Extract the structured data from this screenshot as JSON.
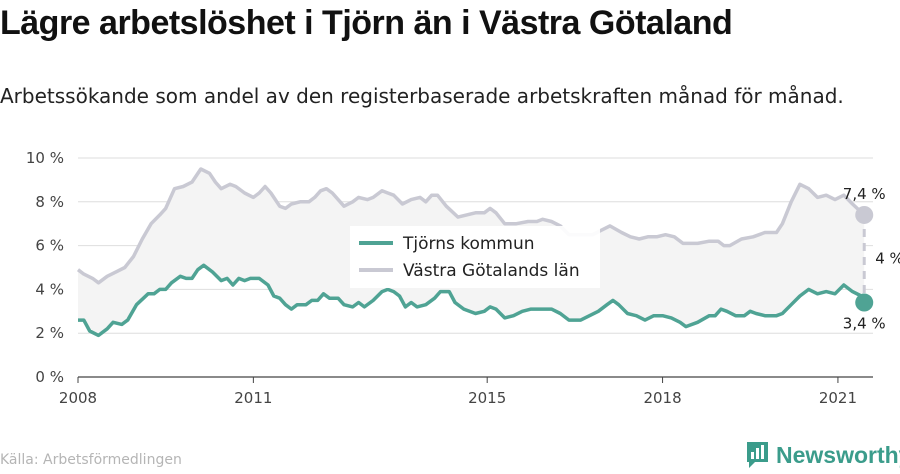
{
  "header": {
    "title": "Lägre arbetslöshet i Tjörn än i Västra Götaland",
    "subtitle": "Arbetssökande som andel av den registerbaserade arbetskraften månad för månad."
  },
  "footer": {
    "source": "Källa: Arbetsförmedlingen",
    "brand": "Newsworthy"
  },
  "colors": {
    "tjorn": "#4fa394",
    "vg": "#c9c9d3",
    "band": "#f4f4f4",
    "grid": "#dedede"
  },
  "chart_data": {
    "type": "line",
    "x_unit": "year",
    "xlim": [
      2008,
      2021.6
    ],
    "ylim": [
      0,
      10
    ],
    "y_ticks": [
      {
        "value": 0,
        "label": "0 %"
      },
      {
        "value": 2,
        "label": "2 %"
      },
      {
        "value": 4,
        "label": "4 %"
      },
      {
        "value": 6,
        "label": "6 %"
      },
      {
        "value": 8,
        "label": "8 %"
      },
      {
        "value": 10,
        "label": "10 %"
      }
    ],
    "x_ticks": [
      {
        "value": 2008,
        "label": "2008"
      },
      {
        "value": 2011,
        "label": "2011"
      },
      {
        "value": 2015,
        "label": "2015"
      },
      {
        "value": 2018,
        "label": "2018"
      },
      {
        "value": 2021,
        "label": "2021"
      }
    ],
    "grid": true,
    "legend_position": "center",
    "series": [
      {
        "name": "Tjörns kommun",
        "key": "tjorn",
        "points": [
          [
            2008.0,
            2.6
          ],
          [
            2008.1,
            2.6
          ],
          [
            2008.2,
            2.1
          ],
          [
            2008.35,
            1.9
          ],
          [
            2008.5,
            2.2
          ],
          [
            2008.6,
            2.5
          ],
          [
            2008.75,
            2.4
          ],
          [
            2008.85,
            2.6
          ],
          [
            2009.0,
            3.3
          ],
          [
            2009.2,
            3.8
          ],
          [
            2009.3,
            3.8
          ],
          [
            2009.4,
            4.0
          ],
          [
            2009.5,
            4.0
          ],
          [
            2009.6,
            4.3
          ],
          [
            2009.75,
            4.6
          ],
          [
            2009.85,
            4.5
          ],
          [
            2009.95,
            4.5
          ],
          [
            2010.05,
            4.9
          ],
          [
            2010.15,
            5.1
          ],
          [
            2010.3,
            4.8
          ],
          [
            2010.45,
            4.4
          ],
          [
            2010.55,
            4.5
          ],
          [
            2010.65,
            4.2
          ],
          [
            2010.75,
            4.5
          ],
          [
            2010.85,
            4.4
          ],
          [
            2010.95,
            4.5
          ],
          [
            2011.1,
            4.5
          ],
          [
            2011.25,
            4.2
          ],
          [
            2011.35,
            3.7
          ],
          [
            2011.45,
            3.6
          ],
          [
            2011.55,
            3.3
          ],
          [
            2011.65,
            3.1
          ],
          [
            2011.75,
            3.3
          ],
          [
            2011.9,
            3.3
          ],
          [
            2012.0,
            3.5
          ],
          [
            2012.1,
            3.5
          ],
          [
            2012.2,
            3.8
          ],
          [
            2012.3,
            3.6
          ],
          [
            2012.45,
            3.6
          ],
          [
            2012.55,
            3.3
          ],
          [
            2012.7,
            3.2
          ],
          [
            2012.8,
            3.4
          ],
          [
            2012.9,
            3.2
          ],
          [
            2013.05,
            3.5
          ],
          [
            2013.2,
            3.9
          ],
          [
            2013.3,
            4.0
          ],
          [
            2013.4,
            3.9
          ],
          [
            2013.5,
            3.7
          ],
          [
            2013.6,
            3.2
          ],
          [
            2013.7,
            3.4
          ],
          [
            2013.8,
            3.2
          ],
          [
            2013.95,
            3.3
          ],
          [
            2014.1,
            3.6
          ],
          [
            2014.2,
            3.9
          ],
          [
            2014.35,
            3.9
          ],
          [
            2014.45,
            3.4
          ],
          [
            2014.6,
            3.1
          ],
          [
            2014.8,
            2.9
          ],
          [
            2014.95,
            3.0
          ],
          [
            2015.05,
            3.2
          ],
          [
            2015.15,
            3.1
          ],
          [
            2015.3,
            2.7
          ],
          [
            2015.45,
            2.8
          ],
          [
            2015.6,
            3.0
          ],
          [
            2015.75,
            3.1
          ],
          [
            2015.95,
            3.1
          ],
          [
            2016.1,
            3.1
          ],
          [
            2016.25,
            2.9
          ],
          [
            2016.4,
            2.6
          ],
          [
            2016.6,
            2.6
          ],
          [
            2016.75,
            2.8
          ],
          [
            2016.9,
            3.0
          ],
          [
            2017.05,
            3.3
          ],
          [
            2017.15,
            3.5
          ],
          [
            2017.25,
            3.3
          ],
          [
            2017.4,
            2.9
          ],
          [
            2017.55,
            2.8
          ],
          [
            2017.7,
            2.6
          ],
          [
            2017.85,
            2.8
          ],
          [
            2018.0,
            2.8
          ],
          [
            2018.15,
            2.7
          ],
          [
            2018.3,
            2.5
          ],
          [
            2018.4,
            2.3
          ],
          [
            2018.6,
            2.5
          ],
          [
            2018.8,
            2.8
          ],
          [
            2018.9,
            2.8
          ],
          [
            2019.0,
            3.1
          ],
          [
            2019.1,
            3.0
          ],
          [
            2019.25,
            2.8
          ],
          [
            2019.4,
            2.8
          ],
          [
            2019.5,
            3.0
          ],
          [
            2019.6,
            2.9
          ],
          [
            2019.75,
            2.8
          ],
          [
            2019.95,
            2.8
          ],
          [
            2020.05,
            2.9
          ],
          [
            2020.2,
            3.3
          ],
          [
            2020.35,
            3.7
          ],
          [
            2020.5,
            4.0
          ],
          [
            2020.65,
            3.8
          ],
          [
            2020.8,
            3.9
          ],
          [
            2020.95,
            3.8
          ],
          [
            2021.1,
            4.2
          ],
          [
            2021.25,
            3.9
          ],
          [
            2021.4,
            3.7
          ],
          [
            2021.45,
            3.4
          ]
        ],
        "end_label": "3,4 %"
      },
      {
        "name": "Västra Götalands län",
        "key": "vg",
        "points": [
          [
            2008.0,
            4.9
          ],
          [
            2008.1,
            4.7
          ],
          [
            2008.25,
            4.5
          ],
          [
            2008.35,
            4.3
          ],
          [
            2008.5,
            4.6
          ],
          [
            2008.65,
            4.8
          ],
          [
            2008.8,
            5.0
          ],
          [
            2008.95,
            5.5
          ],
          [
            2009.1,
            6.3
          ],
          [
            2009.25,
            7.0
          ],
          [
            2009.4,
            7.4
          ],
          [
            2009.5,
            7.7
          ],
          [
            2009.65,
            8.6
          ],
          [
            2009.8,
            8.7
          ],
          [
            2009.95,
            8.9
          ],
          [
            2010.1,
            9.5
          ],
          [
            2010.25,
            9.3
          ],
          [
            2010.35,
            8.9
          ],
          [
            2010.45,
            8.6
          ],
          [
            2010.6,
            8.8
          ],
          [
            2010.7,
            8.7
          ],
          [
            2010.85,
            8.4
          ],
          [
            2011.0,
            8.2
          ],
          [
            2011.1,
            8.4
          ],
          [
            2011.2,
            8.7
          ],
          [
            2011.3,
            8.4
          ],
          [
            2011.45,
            7.8
          ],
          [
            2011.55,
            7.7
          ],
          [
            2011.65,
            7.9
          ],
          [
            2011.8,
            8.0
          ],
          [
            2011.95,
            8.0
          ],
          [
            2012.05,
            8.2
          ],
          [
            2012.15,
            8.5
          ],
          [
            2012.25,
            8.6
          ],
          [
            2012.35,
            8.4
          ],
          [
            2012.55,
            7.8
          ],
          [
            2012.7,
            8.0
          ],
          [
            2012.8,
            8.2
          ],
          [
            2012.95,
            8.1
          ],
          [
            2013.05,
            8.2
          ],
          [
            2013.2,
            8.5
          ],
          [
            2013.3,
            8.4
          ],
          [
            2013.4,
            8.3
          ],
          [
            2013.55,
            7.9
          ],
          [
            2013.7,
            8.1
          ],
          [
            2013.85,
            8.2
          ],
          [
            2013.95,
            8.0
          ],
          [
            2014.05,
            8.3
          ],
          [
            2014.15,
            8.3
          ],
          [
            2014.3,
            7.8
          ],
          [
            2014.5,
            7.3
          ],
          [
            2014.65,
            7.4
          ],
          [
            2014.8,
            7.5
          ],
          [
            2014.95,
            7.5
          ],
          [
            2015.05,
            7.7
          ],
          [
            2015.15,
            7.5
          ],
          [
            2015.3,
            7.0
          ],
          [
            2015.5,
            7.0
          ],
          [
            2015.7,
            7.1
          ],
          [
            2015.85,
            7.1
          ],
          [
            2015.95,
            7.2
          ],
          [
            2016.1,
            7.1
          ],
          [
            2016.25,
            6.9
          ],
          [
            2016.4,
            6.5
          ],
          [
            2016.6,
            6.5
          ],
          [
            2016.8,
            6.5
          ],
          [
            2016.95,
            6.7
          ],
          [
            2017.1,
            6.9
          ],
          [
            2017.3,
            6.6
          ],
          [
            2017.45,
            6.4
          ],
          [
            2017.6,
            6.3
          ],
          [
            2017.75,
            6.4
          ],
          [
            2017.9,
            6.4
          ],
          [
            2018.05,
            6.5
          ],
          [
            2018.2,
            6.4
          ],
          [
            2018.35,
            6.1
          ],
          [
            2018.6,
            6.1
          ],
          [
            2018.8,
            6.2
          ],
          [
            2018.95,
            6.2
          ],
          [
            2019.05,
            6.0
          ],
          [
            2019.15,
            6.0
          ],
          [
            2019.35,
            6.3
          ],
          [
            2019.55,
            6.4
          ],
          [
            2019.75,
            6.6
          ],
          [
            2019.95,
            6.6
          ],
          [
            2020.05,
            7.0
          ],
          [
            2020.2,
            8.0
          ],
          [
            2020.35,
            8.8
          ],
          [
            2020.5,
            8.6
          ],
          [
            2020.65,
            8.2
          ],
          [
            2020.8,
            8.3
          ],
          [
            2020.95,
            8.1
          ],
          [
            2021.1,
            8.3
          ],
          [
            2021.25,
            7.9
          ],
          [
            2021.45,
            7.4
          ]
        ],
        "end_label": "7,4 %"
      }
    ],
    "difference_label": "4 %"
  }
}
